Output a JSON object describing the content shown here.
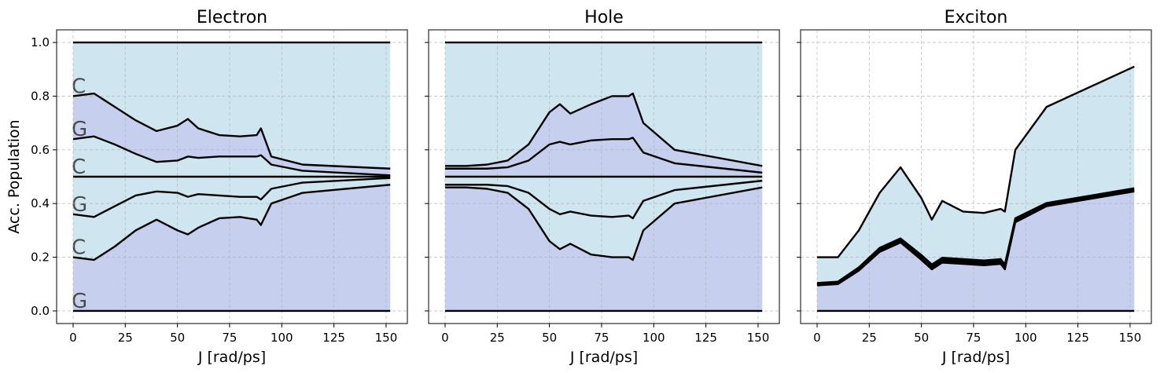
{
  "chart_data": [
    {
      "type": "stacked_area",
      "title": "Electron",
      "xlabel": "J [rad/ps]",
      "ylabel": "Acc. Population",
      "x": [
        0,
        10,
        20,
        30,
        40,
        50,
        55,
        60,
        70,
        80,
        88,
        90,
        95,
        110,
        152
      ],
      "series": [
        {
          "name": "G",
          "color": "#c6d0ee",
          "values": [
            0.2,
            0.19,
            0.24,
            0.3,
            0.34,
            0.3,
            0.285,
            0.31,
            0.345,
            0.35,
            0.34,
            0.32,
            0.4,
            0.44,
            0.47
          ]
        },
        {
          "name": "C",
          "color": "#cfe5f0",
          "values": [
            0.16,
            0.16,
            0.15,
            0.13,
            0.105,
            0.14,
            0.14,
            0.125,
            0.085,
            0.075,
            0.085,
            0.095,
            0.055,
            0.038,
            0.025
          ]
        },
        {
          "name": "G",
          "color": "#cfe5f0",
          "values": [
            0.14,
            0.15,
            0.11,
            0.07,
            0.055,
            0.06,
            0.075,
            0.065,
            0.07,
            0.075,
            0.075,
            0.085,
            0.045,
            0.022,
            0.005
          ]
        },
        {
          "name": "C",
          "color": "#cfe5f0",
          "values": [
            0.14,
            0.15,
            0.12,
            0.085,
            0.055,
            0.06,
            0.075,
            0.07,
            0.075,
            0.075,
            0.075,
            0.08,
            0.045,
            0.022,
            0.005
          ]
        },
        {
          "name": "G",
          "color": "#c6d0ee",
          "values": [
            0.16,
            0.16,
            0.14,
            0.125,
            0.115,
            0.13,
            0.14,
            0.11,
            0.08,
            0.075,
            0.08,
            0.1,
            0.03,
            0.023,
            0.025
          ]
        },
        {
          "name": "C",
          "color": "#cfe5f0",
          "values": [
            0.2,
            0.19,
            0.24,
            0.29,
            0.33,
            0.31,
            0.285,
            0.32,
            0.345,
            0.35,
            0.345,
            0.32,
            0.425,
            0.455,
            0.47
          ]
        }
      ],
      "xlim": [
        -7.9,
        160.2
      ],
      "ylim": [
        -0.047,
        1.047
      ],
      "xticks": [
        0,
        25,
        50,
        75,
        100,
        125,
        150
      ],
      "yticks": [
        {
          "value": 0,
          "label": "0.0"
        },
        {
          "value": 0.2,
          "label": "0.2"
        },
        {
          "value": 0.4,
          "label": "0.4"
        },
        {
          "value": 0.6,
          "label": "0.6"
        },
        {
          "value": 0.8,
          "label": "0.8"
        },
        {
          "value": 1,
          "label": "1.0"
        }
      ],
      "grid": true
    },
    {
      "type": "stacked_area",
      "title": "Hole",
      "xlabel": "J [rad/ps]",
      "x": [
        0,
        10,
        20,
        30,
        40,
        50,
        55,
        60,
        70,
        80,
        88,
        90,
        95,
        110,
        152
      ],
      "series": [
        {
          "color": "#c6d0ee",
          "values": [
            0.46,
            0.46,
            0.455,
            0.44,
            0.38,
            0.26,
            0.23,
            0.25,
            0.21,
            0.2,
            0.2,
            0.19,
            0.3,
            0.4,
            0.46
          ]
        },
        {
          "color": "#cfe5f0",
          "values": [
            0.01,
            0.01,
            0.015,
            0.025,
            0.06,
            0.12,
            0.13,
            0.12,
            0.145,
            0.15,
            0.155,
            0.155,
            0.11,
            0.05,
            0.025
          ]
        },
        {
          "color": "#cfe5f0",
          "values": [
            0.03,
            0.03,
            0.03,
            0.035,
            0.06,
            0.12,
            0.14,
            0.13,
            0.145,
            0.15,
            0.145,
            0.155,
            0.09,
            0.05,
            0.015
          ]
        },
        {
          "color": "#c6d0ee",
          "values": [
            0.03,
            0.03,
            0.03,
            0.035,
            0.06,
            0.12,
            0.13,
            0.12,
            0.135,
            0.14,
            0.14,
            0.145,
            0.09,
            0.05,
            0.015
          ]
        },
        {
          "color": "#c6d0ee",
          "values": [
            0.01,
            0.01,
            0.015,
            0.025,
            0.06,
            0.12,
            0.14,
            0.115,
            0.135,
            0.16,
            0.16,
            0.165,
            0.11,
            0.05,
            0.025
          ]
        },
        {
          "color": "#cfe5f0",
          "values": [
            0.46,
            0.46,
            0.455,
            0.44,
            0.38,
            0.26,
            0.23,
            0.265,
            0.23,
            0.2,
            0.2,
            0.19,
            0.3,
            0.4,
            0.46
          ]
        }
      ],
      "xlim": [
        -7.9,
        160.2
      ],
      "ylim": [
        -0.047,
        1.047
      ],
      "xticks": [
        0,
        25,
        50,
        75,
        100,
        125,
        150
      ],
      "grid": true
    },
    {
      "type": "stacked_area",
      "title": "Exciton",
      "xlabel": "J [rad/ps]",
      "x": [
        0,
        10,
        20,
        30,
        40,
        50,
        55,
        60,
        70,
        80,
        88,
        90,
        95,
        110,
        152
      ],
      "series": [
        {
          "color": "#c6d0ee",
          "values": [
            0.095,
            0.1,
            0.15,
            0.22,
            0.255,
            0.19,
            0.155,
            0.18,
            0.175,
            0.17,
            0.175,
            0.155,
            0.33,
            0.39,
            0.445
          ]
        },
        {
          "color": "#c6d0ee",
          "values": [
            0.003,
            0.003,
            0.004,
            0.005,
            0.005,
            0.006,
            0.006,
            0.006,
            0.006,
            0.006,
            0.006,
            0.006,
            0.005,
            0.004,
            0.004
          ]
        },
        {
          "color": "#c6d0ee",
          "values": [
            0.003,
            0.003,
            0.004,
            0.005,
            0.005,
            0.006,
            0.006,
            0.006,
            0.006,
            0.006,
            0.006,
            0.006,
            0.005,
            0.004,
            0.004
          ]
        },
        {
          "color": "#c6d0ee",
          "values": [
            0.003,
            0.003,
            0.004,
            0.005,
            0.005,
            0.006,
            0.006,
            0.006,
            0.006,
            0.006,
            0.006,
            0.006,
            0.005,
            0.004,
            0.004
          ]
        },
        {
          "color": "#cfe5f0",
          "values": [
            0.096,
            0.091,
            0.138,
            0.205,
            0.265,
            0.212,
            0.167,
            0.212,
            0.177,
            0.177,
            0.187,
            0.197,
            0.255,
            0.358,
            0.453
          ]
        }
      ],
      "xlim": [
        -7.9,
        160.2
      ],
      "ylim": [
        -0.047,
        1.047
      ],
      "xticks": [
        0,
        25,
        50,
        75,
        100,
        125,
        150
      ],
      "grid": true
    }
  ]
}
